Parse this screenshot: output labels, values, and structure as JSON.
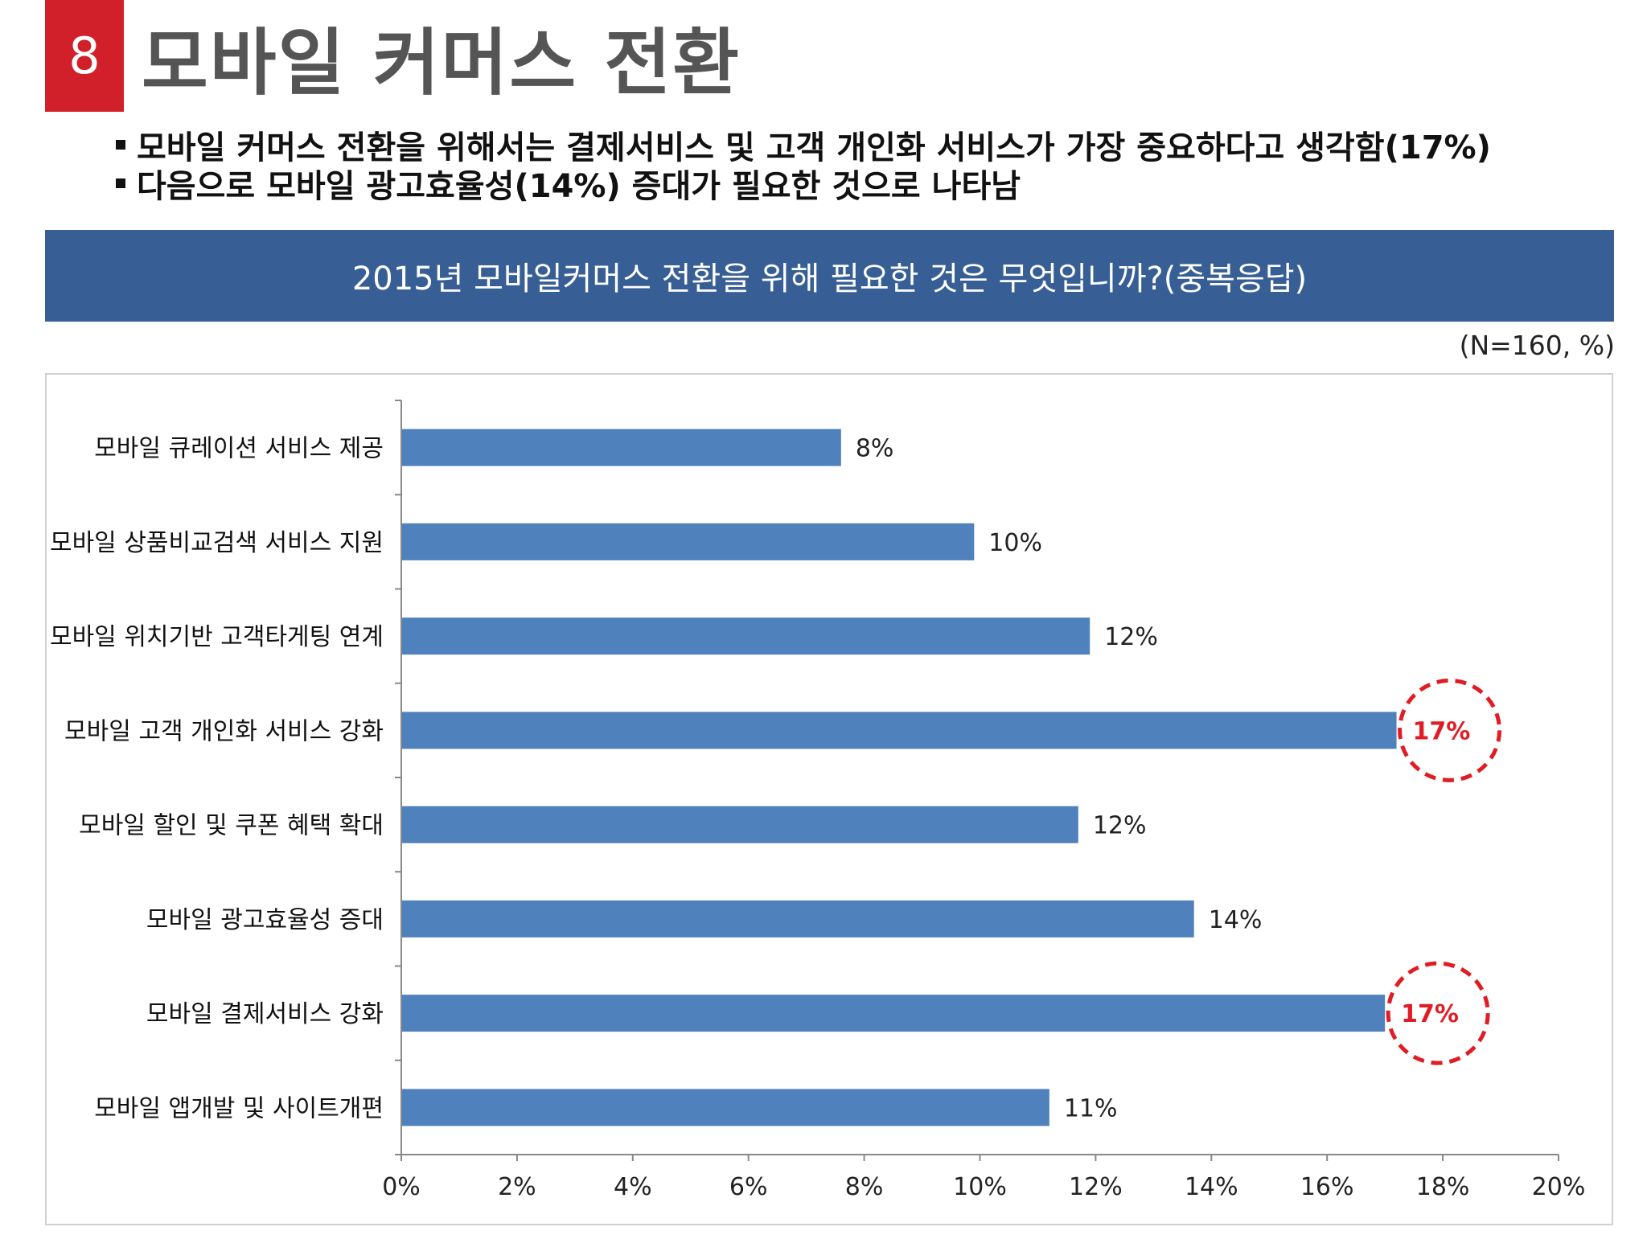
{
  "header": {
    "number": "8",
    "title": "모바일 커머스 전환"
  },
  "bullets": [
    "모바일 커머스 전환을 위해서는 결제서비스  및 고객 개인화 서비스가 가장 중요하다고 생각함(17%)",
    "다음으로 모바일 광고효율성(14%) 증대가 필요한 것으로 나타남"
  ],
  "banner": {
    "text": "2015년 모바일커머스 전환을 위해 필요한 것은 무엇입니까?(중복응답)"
  },
  "sample_note": "(N=160, %)",
  "colors": {
    "bar": "#4f81bd",
    "highlight": "#e01c24",
    "banner": "#375f95",
    "badge": "#d1202a"
  },
  "chart_data": {
    "type": "bar",
    "orientation": "horizontal",
    "categories": [
      "모바일 큐레이션 서비스 제공",
      "모바일 상품비교검색 서비스 지원",
      "모바일 위치기반 고객타게팅 연계",
      "모바일 고객 개인화 서비스 강화",
      "모바일 할인 및 쿠폰 혜택 확대",
      "모바일 광고효율성 증대",
      "모바일 결제서비스 강화",
      "모바일 앱개발 및 사이트개편"
    ],
    "values": [
      7.6,
      9.9,
      11.9,
      17.2,
      11.7,
      13.7,
      17.0,
      11.2
    ],
    "data_labels": [
      "8%",
      "10%",
      "12%",
      "17%",
      "12%",
      "14%",
      "17%",
      "11%"
    ],
    "highlighted": [
      3,
      6
    ],
    "xlim": [
      0,
      20
    ],
    "xticks": [
      0,
      2,
      4,
      6,
      8,
      10,
      12,
      14,
      16,
      18,
      20
    ],
    "xtick_labels": [
      "0%",
      "2%",
      "4%",
      "6%",
      "8%",
      "10%",
      "12%",
      "14%",
      "16%",
      "18%",
      "20%"
    ],
    "title": "",
    "xlabel": "",
    "ylabel": "",
    "grid": false,
    "legend": "none"
  }
}
